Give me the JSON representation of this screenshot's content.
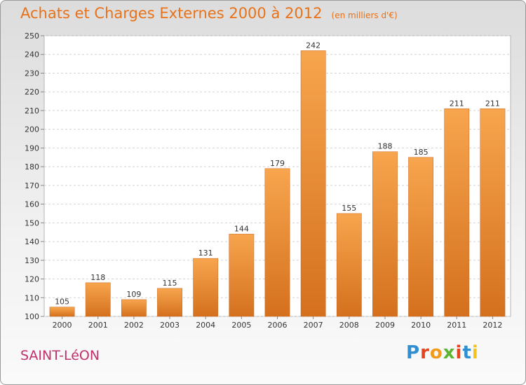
{
  "chart_data": {
    "type": "bar",
    "title": "Achats et Charges Externes 2000 à 2012",
    "subtitle": "(en milliers d'€)",
    "categories": [
      "2000",
      "2001",
      "2002",
      "2003",
      "2004",
      "2005",
      "2006",
      "2007",
      "2008",
      "2009",
      "2010",
      "2011",
      "2012"
    ],
    "values": [
      105,
      118,
      109,
      115,
      131,
      144,
      179,
      242,
      155,
      188,
      185,
      211,
      211
    ],
    "ylim": [
      100,
      250
    ],
    "yticks": [
      100,
      110,
      120,
      130,
      140,
      150,
      160,
      170,
      180,
      190,
      200,
      210,
      220,
      230,
      240,
      250
    ],
    "xlabel": "",
    "ylabel": "",
    "grid": true,
    "legend": "none",
    "colors": {
      "bar_light": "#f7a54e",
      "bar_dark": "#d4701e",
      "title": "#e8721a"
    }
  },
  "footer": {
    "town": "SAINT-LéON",
    "logo_letters": [
      "P",
      "r",
      "o",
      "x",
      "i",
      "t",
      "i"
    ],
    "logo_colors": [
      "#2f8fd0",
      "#e8431f",
      "#f29a1a",
      "#5cb531",
      "#e8431f",
      "#2f8fd0",
      "#f2c31a"
    ]
  }
}
